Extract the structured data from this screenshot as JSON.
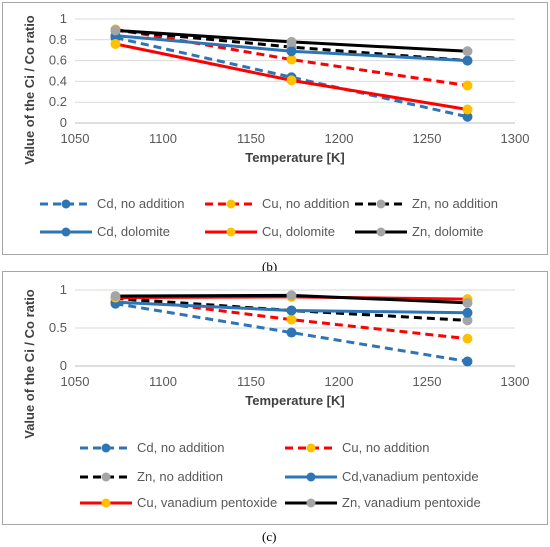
{
  "captions": {
    "b": "(b)",
    "c": "(c)"
  },
  "chart_data": [
    {
      "type": "line",
      "xlabel": "Temperature [K]",
      "ylabel": "Value of the Ci / Co ratio",
      "xlim": [
        1050,
        1300
      ],
      "ylim": [
        0,
        1
      ],
      "xticks": [
        1050,
        1100,
        1150,
        1200,
        1250,
        1300
      ],
      "yticks": [
        0,
        0.2,
        0.4,
        0.6,
        0.8,
        1
      ],
      "ytick_labels": [
        "0",
        "0.2",
        "0.4",
        "0.6",
        "0.8",
        "1"
      ],
      "legend_position": "bottom",
      "grid": "horizontal",
      "series": [
        {
          "name": "Cd, no addition",
          "x": [
            1073,
            1173,
            1273
          ],
          "y": [
            0.82,
            0.44,
            0.06
          ],
          "color": "#2e75b6",
          "dash": true,
          "marker": "#2e75b6"
        },
        {
          "name": "Cu, no addition",
          "x": [
            1073,
            1173,
            1273
          ],
          "y": [
            0.9,
            0.61,
            0.36
          ],
          "color": "#ff0000",
          "dash": true,
          "marker": "#ffc000"
        },
        {
          "name": "Zn, no addition",
          "x": [
            1073,
            1173,
            1273
          ],
          "y": [
            0.89,
            0.73,
            0.6
          ],
          "color": "#000000",
          "dash": true,
          "marker": "#a5a5a5"
        },
        {
          "name": "Cd, dolomite",
          "x": [
            1073,
            1173,
            1273
          ],
          "y": [
            0.84,
            0.69,
            0.6
          ],
          "color": "#2e75b6",
          "dash": false,
          "marker": "#2e75b6"
        },
        {
          "name": "Cu, dolomite",
          "x": [
            1073,
            1173,
            1273
          ],
          "y": [
            0.76,
            0.41,
            0.13
          ],
          "color": "#ff0000",
          "dash": false,
          "marker": "#ffc000"
        },
        {
          "name": "Zn, dolomite",
          "x": [
            1073,
            1173,
            1273
          ],
          "y": [
            0.89,
            0.78,
            0.69
          ],
          "color": "#000000",
          "dash": false,
          "marker": "#a5a5a5"
        }
      ]
    },
    {
      "type": "line",
      "xlabel": "Temperature [K]",
      "ylabel": "Value of the Ci / Co ratio",
      "xlim": [
        1050,
        1300
      ],
      "ylim": [
        0,
        1
      ],
      "xticks": [
        1050,
        1100,
        1150,
        1200,
        1250,
        1300
      ],
      "yticks": [
        0,
        0.5,
        1
      ],
      "ytick_labels": [
        "0",
        "0.5",
        "1"
      ],
      "legend_position": "bottom",
      "grid": "horizontal",
      "series": [
        {
          "name": "Cd, no addition",
          "x": [
            1073,
            1173,
            1273
          ],
          "y": [
            0.82,
            0.44,
            0.06
          ],
          "color": "#2e75b6",
          "dash": true,
          "marker": "#2e75b6"
        },
        {
          "name": "Cu, no addition",
          "x": [
            1073,
            1173,
            1273
          ],
          "y": [
            0.9,
            0.61,
            0.36
          ],
          "color": "#ff0000",
          "dash": true,
          "marker": "#ffc000"
        },
        {
          "name": "Zn, no addition",
          "x": [
            1073,
            1173,
            1273
          ],
          "y": [
            0.89,
            0.73,
            0.6
          ],
          "color": "#000000",
          "dash": true,
          "marker": "#a5a5a5"
        },
        {
          "name": "Cd,vanadium pentoxide",
          "x": [
            1073,
            1173,
            1273
          ],
          "y": [
            0.84,
            0.73,
            0.7
          ],
          "color": "#2e75b6",
          "dash": false,
          "marker": "#2e75b6"
        },
        {
          "name": "Cu, vanadium pentoxide",
          "x": [
            1073,
            1173,
            1273
          ],
          "y": [
            0.9,
            0.91,
            0.88
          ],
          "color": "#ff0000",
          "dash": false,
          "marker": "#ffc000"
        },
        {
          "name": "Zn, vanadium pentoxide",
          "x": [
            1073,
            1173,
            1273
          ],
          "y": [
            0.92,
            0.93,
            0.83
          ],
          "color": "#000000",
          "dash": false,
          "marker": "#a5a5a5"
        }
      ]
    }
  ]
}
